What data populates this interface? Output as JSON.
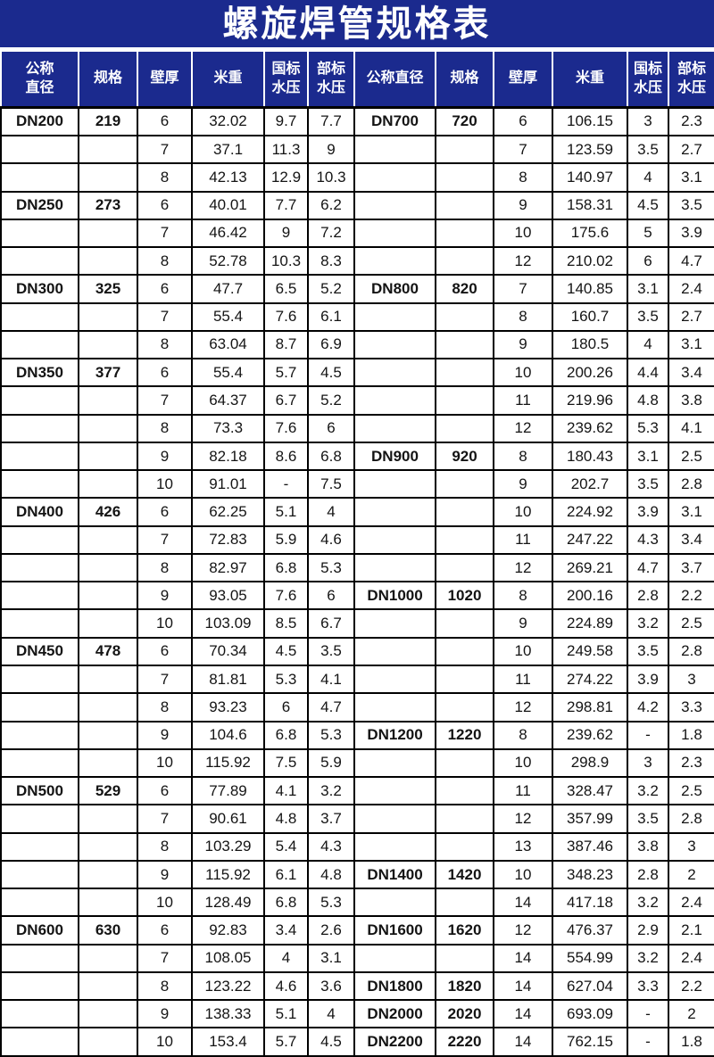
{
  "title": "螺旋焊管规格表",
  "colors": {
    "header_bg": "#1b2a8e",
    "header_text": "#ffffff",
    "grid_line": "#000000",
    "body_text": "#141414"
  },
  "table": {
    "header_left": [
      "公称\n直径",
      "规格",
      "壁厚",
      "米重",
      "国标\n水压",
      "部标\n水压"
    ],
    "header_right": [
      "公称直径",
      "规格",
      "壁厚",
      "米重",
      "国标\n水压",
      "部标\n水压"
    ],
    "column_keys": [
      "nominal-diameter",
      "spec",
      "wall-thickness",
      "weight-per-meter",
      "gb-pressure",
      "ministry-pressure"
    ],
    "left_rows": [
      [
        "DN200",
        "219",
        "6",
        "32.02",
        "9.7",
        "7.7"
      ],
      [
        "",
        "",
        "7",
        "37.1",
        "11.3",
        "9"
      ],
      [
        "",
        "",
        "8",
        "42.13",
        "12.9",
        "10.3"
      ],
      [
        "DN250",
        "273",
        "6",
        "40.01",
        "7.7",
        "6.2"
      ],
      [
        "",
        "",
        "7",
        "46.42",
        "9",
        "7.2"
      ],
      [
        "",
        "",
        "8",
        "52.78",
        "10.3",
        "8.3"
      ],
      [
        "DN300",
        "325",
        "6",
        "47.7",
        "6.5",
        "5.2"
      ],
      [
        "",
        "",
        "7",
        "55.4",
        "7.6",
        "6.1"
      ],
      [
        "",
        "",
        "8",
        "63.04",
        "8.7",
        "6.9"
      ],
      [
        "DN350",
        "377",
        "6",
        "55.4",
        "5.7",
        "4.5"
      ],
      [
        "",
        "",
        "7",
        "64.37",
        "6.7",
        "5.2"
      ],
      [
        "",
        "",
        "8",
        "73.3",
        "7.6",
        "6"
      ],
      [
        "",
        "",
        "9",
        "82.18",
        "8.6",
        "6.8"
      ],
      [
        "",
        "",
        "10",
        "91.01",
        "-",
        "7.5"
      ],
      [
        "DN400",
        "426",
        "6",
        "62.25",
        "5.1",
        "4"
      ],
      [
        "",
        "",
        "7",
        "72.83",
        "5.9",
        "4.6"
      ],
      [
        "",
        "",
        "8",
        "82.97",
        "6.8",
        "5.3"
      ],
      [
        "",
        "",
        "9",
        "93.05",
        "7.6",
        "6"
      ],
      [
        "",
        "",
        "10",
        "103.09",
        "8.5",
        "6.7"
      ],
      [
        "DN450",
        "478",
        "6",
        "70.34",
        "4.5",
        "3.5"
      ],
      [
        "",
        "",
        "7",
        "81.81",
        "5.3",
        "4.1"
      ],
      [
        "",
        "",
        "8",
        "93.23",
        "6",
        "4.7"
      ],
      [
        "",
        "",
        "9",
        "104.6",
        "6.8",
        "5.3"
      ],
      [
        "",
        "",
        "10",
        "115.92",
        "7.5",
        "5.9"
      ],
      [
        "DN500",
        "529",
        "6",
        "77.89",
        "4.1",
        "3.2"
      ],
      [
        "",
        "",
        "7",
        "90.61",
        "4.8",
        "3.7"
      ],
      [
        "",
        "",
        "8",
        "103.29",
        "5.4",
        "4.3"
      ],
      [
        "",
        "",
        "9",
        "115.92",
        "6.1",
        "4.8"
      ],
      [
        "",
        "",
        "10",
        "128.49",
        "6.8",
        "5.3"
      ],
      [
        "DN600",
        "630",
        "6",
        "92.83",
        "3.4",
        "2.6"
      ],
      [
        "",
        "",
        "7",
        "108.05",
        "4",
        "3.1"
      ],
      [
        "",
        "",
        "8",
        "123.22",
        "4.6",
        "3.6"
      ],
      [
        "",
        "",
        "9",
        "138.33",
        "5.1",
        "4"
      ],
      [
        "",
        "",
        "10",
        "153.4",
        "5.7",
        "4.5"
      ]
    ],
    "right_rows": [
      [
        "DN700",
        "720",
        "6",
        "106.15",
        "3",
        "2.3"
      ],
      [
        "",
        "",
        "7",
        "123.59",
        "3.5",
        "2.7"
      ],
      [
        "",
        "",
        "8",
        "140.97",
        "4",
        "3.1"
      ],
      [
        "",
        "",
        "9",
        "158.31",
        "4.5",
        "3.5"
      ],
      [
        "",
        "",
        "10",
        "175.6",
        "5",
        "3.9"
      ],
      [
        "",
        "",
        "12",
        "210.02",
        "6",
        "4.7"
      ],
      [
        "DN800",
        "820",
        "7",
        "140.85",
        "3.1",
        "2.4"
      ],
      [
        "",
        "",
        "8",
        "160.7",
        "3.5",
        "2.7"
      ],
      [
        "",
        "",
        "9",
        "180.5",
        "4",
        "3.1"
      ],
      [
        "",
        "",
        "10",
        "200.26",
        "4.4",
        "3.4"
      ],
      [
        "",
        "",
        "11",
        "219.96",
        "4.8",
        "3.8"
      ],
      [
        "",
        "",
        "12",
        "239.62",
        "5.3",
        "4.1"
      ],
      [
        "DN900",
        "920",
        "8",
        "180.43",
        "3.1",
        "2.5"
      ],
      [
        "",
        "",
        "9",
        "202.7",
        "3.5",
        "2.8"
      ],
      [
        "",
        "",
        "10",
        "224.92",
        "3.9",
        "3.1"
      ],
      [
        "",
        "",
        "11",
        "247.22",
        "4.3",
        "3.4"
      ],
      [
        "",
        "",
        "12",
        "269.21",
        "4.7",
        "3.7"
      ],
      [
        "DN1000",
        "1020",
        "8",
        "200.16",
        "2.8",
        "2.2"
      ],
      [
        "",
        "",
        "9",
        "224.89",
        "3.2",
        "2.5"
      ],
      [
        "",
        "",
        "10",
        "249.58",
        "3.5",
        "2.8"
      ],
      [
        "",
        "",
        "11",
        "274.22",
        "3.9",
        "3"
      ],
      [
        "",
        "",
        "12",
        "298.81",
        "4.2",
        "3.3"
      ],
      [
        "DN1200",
        "1220",
        "8",
        "239.62",
        "-",
        "1.8"
      ],
      [
        "",
        "",
        "10",
        "298.9",
        "3",
        "2.3"
      ],
      [
        "",
        "",
        "11",
        "328.47",
        "3.2",
        "2.5"
      ],
      [
        "",
        "",
        "12",
        "357.99",
        "3.5",
        "2.8"
      ],
      [
        "",
        "",
        "13",
        "387.46",
        "3.8",
        "3"
      ],
      [
        "DN1400",
        "1420",
        "10",
        "348.23",
        "2.8",
        "2"
      ],
      [
        "",
        "",
        "14",
        "417.18",
        "3.2",
        "2.4"
      ],
      [
        "DN1600",
        "1620",
        "12",
        "476.37",
        "2.9",
        "2.1"
      ],
      [
        "",
        "",
        "14",
        "554.99",
        "3.2",
        "2.4"
      ],
      [
        "DN1800",
        "1820",
        "14",
        "627.04",
        "3.3",
        "2.2"
      ],
      [
        "DN2000",
        "2020",
        "14",
        "693.09",
        "-",
        "2"
      ],
      [
        "DN2200",
        "2220",
        "14",
        "762.15",
        "-",
        "1.8"
      ]
    ]
  }
}
